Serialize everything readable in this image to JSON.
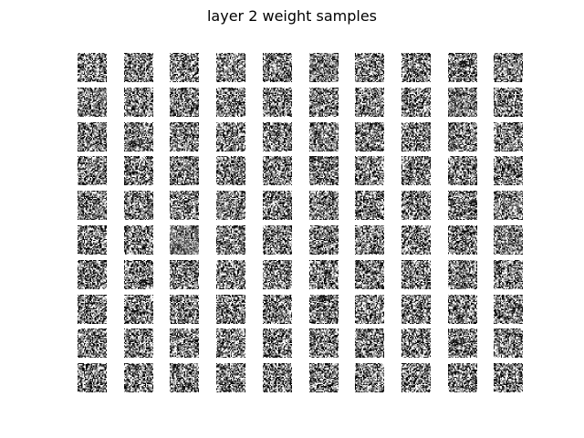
{
  "title": "layer 2 weight samples",
  "chart_data": {
    "type": "heatmap",
    "title": "layer 2 weight samples",
    "grid": {
      "rows": 10,
      "cols": 10
    },
    "tile_resolution": [
      28,
      28
    ],
    "colormap": "gray",
    "axes_visible": false,
    "tile_contrast": [
      [
        0.95,
        0.7,
        0.85,
        0.8,
        0.8,
        0.45,
        0.95,
        0.85,
        0.95,
        0.65
      ],
      [
        0.55,
        0.75,
        0.8,
        0.9,
        0.85,
        0.8,
        0.8,
        0.95,
        0.45,
        0.95
      ],
      [
        0.7,
        0.7,
        0.8,
        0.85,
        0.75,
        0.55,
        0.8,
        0.85,
        0.75,
        0.85
      ],
      [
        0.75,
        0.95,
        0.75,
        0.75,
        0.75,
        0.75,
        0.85,
        0.8,
        0.75,
        0.95
      ],
      [
        0.75,
        0.75,
        0.9,
        0.55,
        0.75,
        0.7,
        0.9,
        0.85,
        0.9,
        0.7
      ],
      [
        0.95,
        0.95,
        0.3,
        0.7,
        0.8,
        0.8,
        0.7,
        0.95,
        0.95,
        0.55
      ],
      [
        0.85,
        0.9,
        0.85,
        0.8,
        0.8,
        0.8,
        0.85,
        0.95,
        0.8,
        0.85
      ],
      [
        0.95,
        0.95,
        0.9,
        0.95,
        0.95,
        0.8,
        0.85,
        0.85,
        0.8,
        0.85
      ],
      [
        0.75,
        0.85,
        0.9,
        0.9,
        0.95,
        0.9,
        0.8,
        0.9,
        0.8,
        0.8
      ],
      [
        0.9,
        0.9,
        0.85,
        0.9,
        0.9,
        0.9,
        0.8,
        0.9,
        0.95,
        0.95
      ]
    ]
  }
}
